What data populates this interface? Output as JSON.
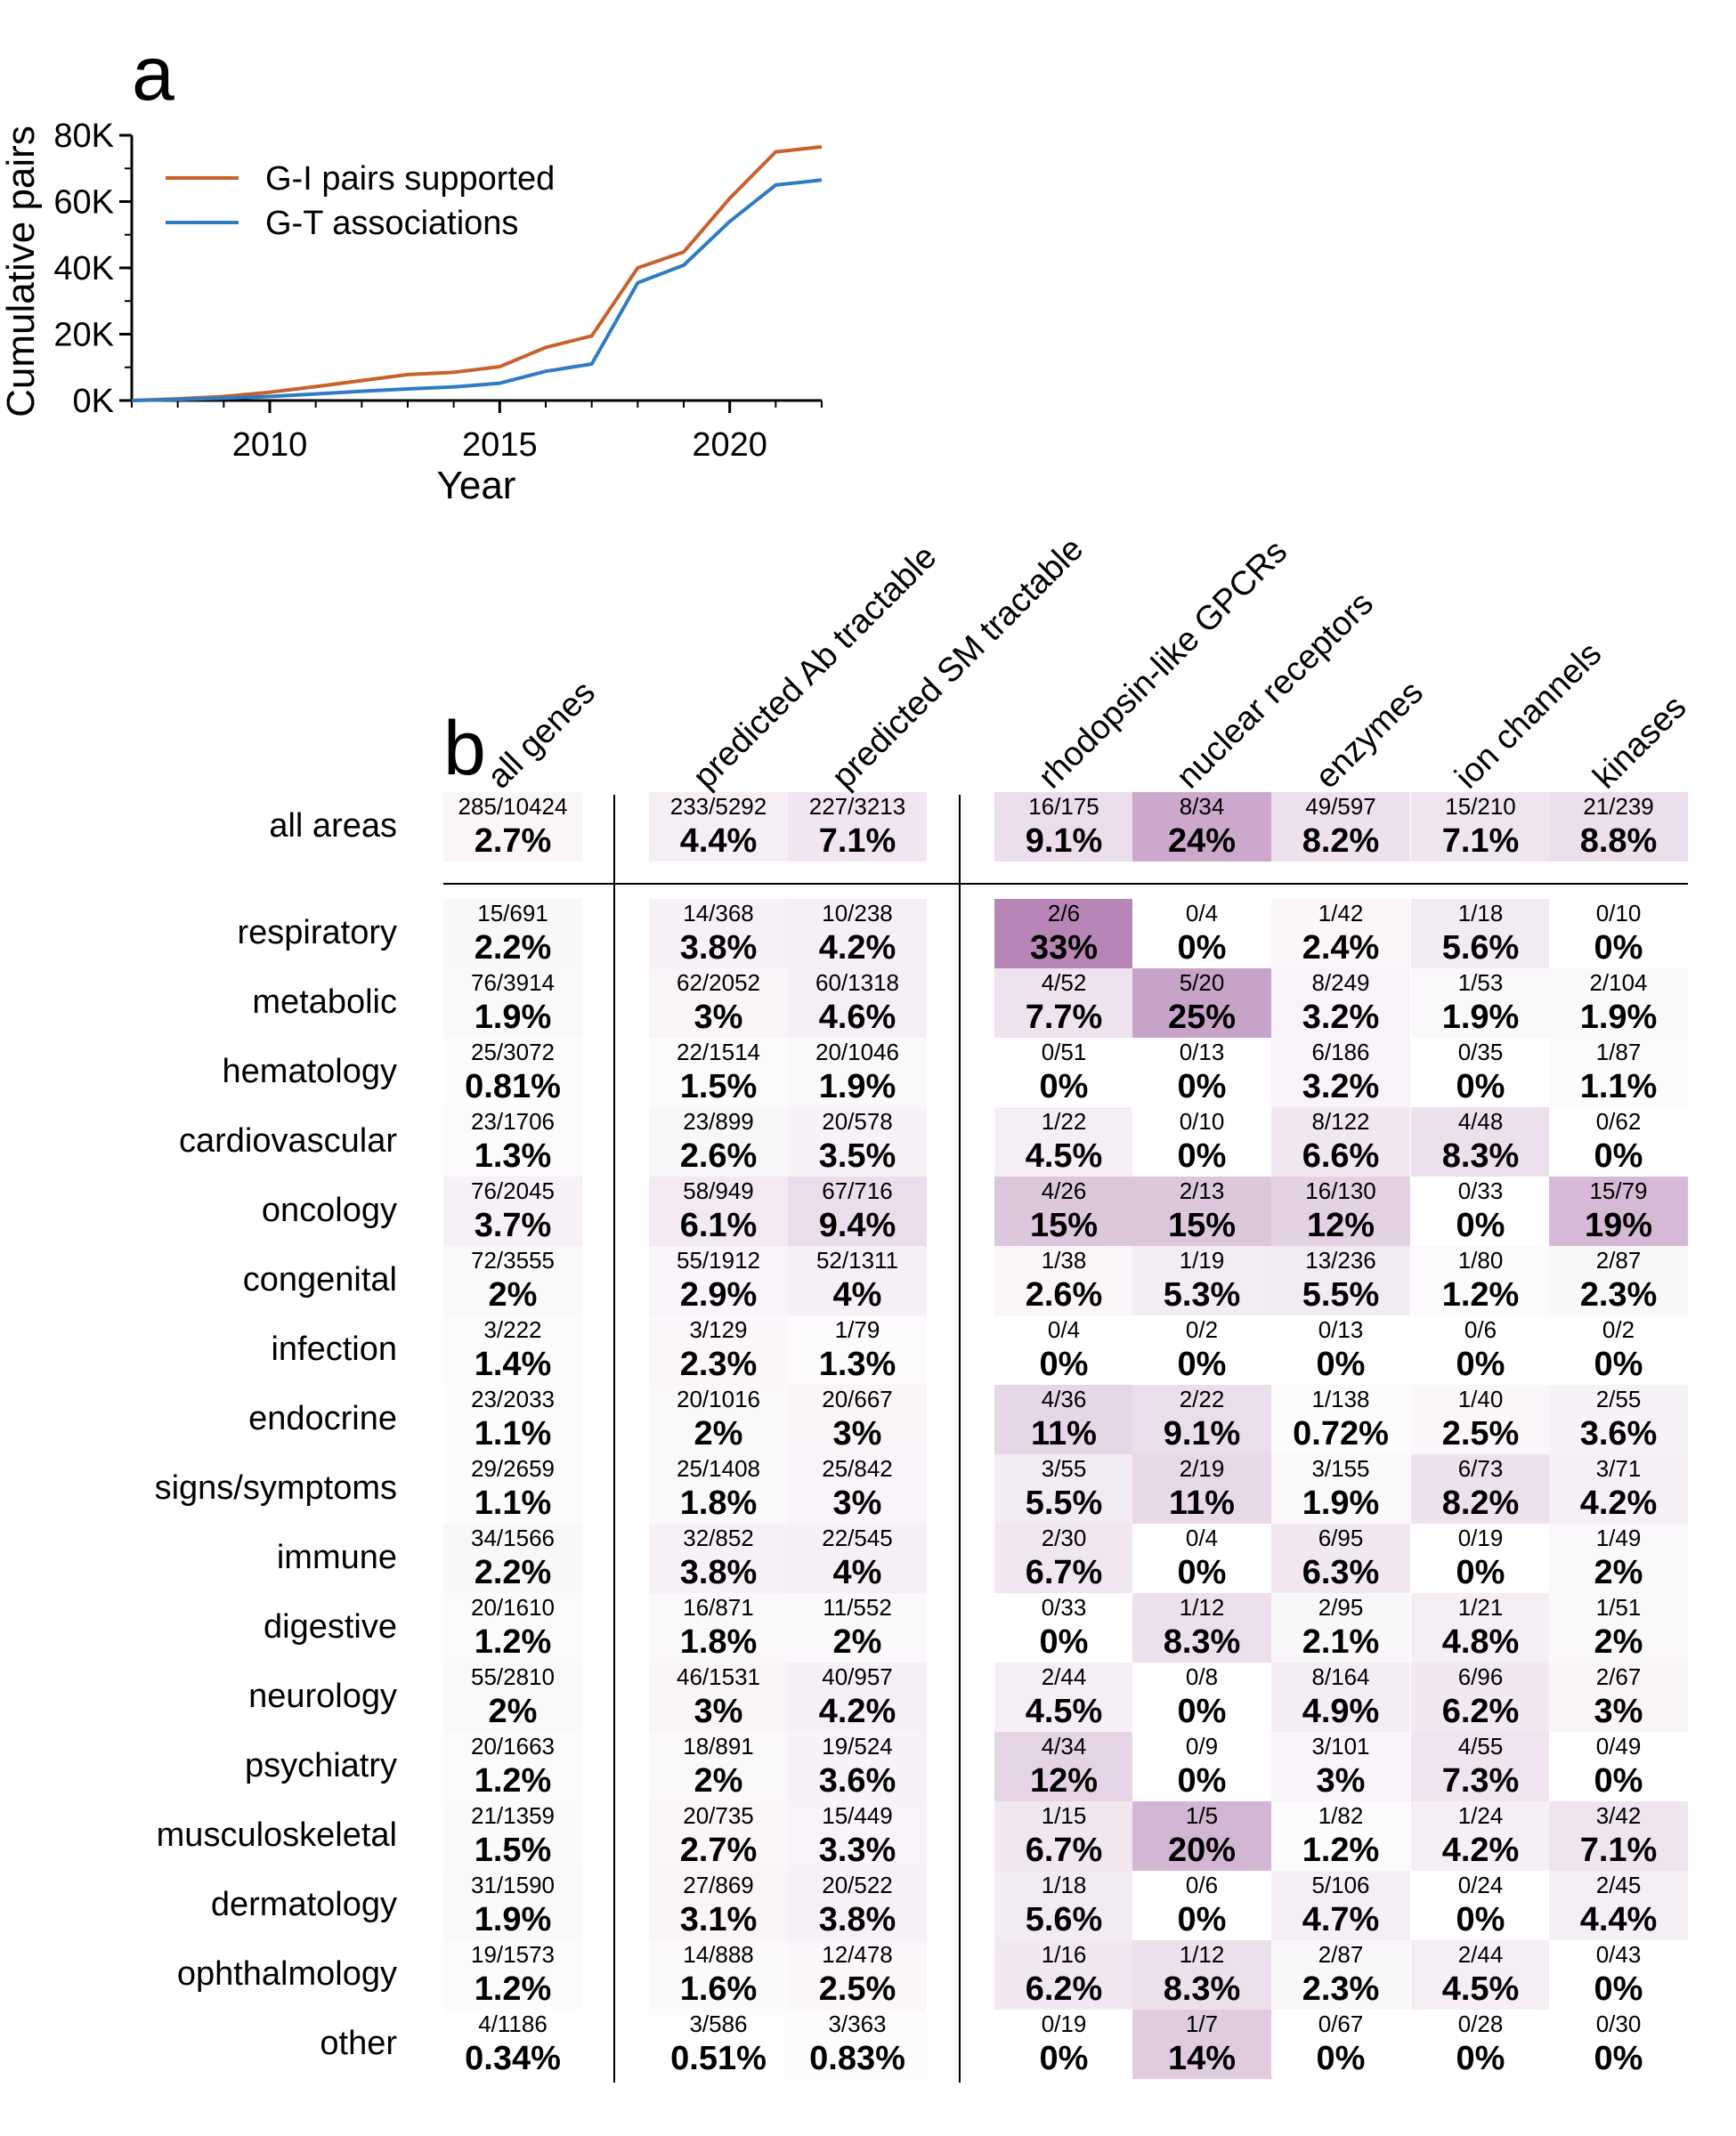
{
  "panel_a": {
    "letter": "a",
    "chart_data": {
      "type": "line",
      "xlabel": "Year",
      "ylabel": "Cumulative pairs",
      "xlim": [
        2007,
        2022
      ],
      "ylim": [
        0,
        80000
      ],
      "x_ticks": [
        2010,
        2015,
        2020
      ],
      "x_tick_labels": [
        "2010",
        "2015",
        "2020"
      ],
      "y_ticks": [
        0,
        20000,
        40000,
        60000,
        80000
      ],
      "y_tick_labels": [
        "0K",
        "20K",
        "40K",
        "60K",
        "80K"
      ],
      "legend_position": "top-left",
      "grid": false,
      "series": [
        {
          "name": "G-I pairs supported",
          "color": "#c8622d",
          "x": [
            2007,
            2008,
            2009,
            2010,
            2011,
            2012,
            2013,
            2014,
            2015,
            2016,
            2017,
            2018,
            2019,
            2020,
            2021,
            2022
          ],
          "y": [
            0,
            500,
            1200,
            2500,
            4200,
            6000,
            7800,
            8500,
            10200,
            16000,
            19500,
            40000,
            44800,
            61000,
            75000,
            76500
          ]
        },
        {
          "name": "G-T associations",
          "color": "#2f7bc4",
          "x": [
            2007,
            2008,
            2009,
            2010,
            2011,
            2012,
            2013,
            2014,
            2015,
            2016,
            2017,
            2018,
            2019,
            2020,
            2021,
            2022
          ],
          "y": [
            0,
            300,
            700,
            1200,
            2000,
            2800,
            3500,
            4100,
            5200,
            8800,
            11000,
            35500,
            40800,
            54000,
            65000,
            66500
          ]
        }
      ]
    }
  },
  "panel_b": {
    "letter": "b",
    "chart_data": {
      "type": "heatmap",
      "columns": [
        "all genes",
        "predicted Ab tractable",
        "predicted SM tractable",
        "rhodopsin-like GPCRs",
        "nuclear receptors",
        "enzymes",
        "ion channels",
        "kinases"
      ],
      "rows": [
        {
          "label": "all areas",
          "fractions": [
            "285/10424",
            "233/5292",
            "227/3213",
            "16/175",
            "8/34",
            "49/597",
            "15/210",
            "21/239"
          ],
          "percents": [
            "2.7%",
            "4.4%",
            "7.1%",
            "9.1%",
            "24%",
            "8.2%",
            "7.1%",
            "8.8%"
          ]
        },
        {
          "label": "respiratory",
          "fractions": [
            "15/691",
            "14/368",
            "10/238",
            "2/6",
            "0/4",
            "1/42",
            "1/18",
            "0/10"
          ],
          "percents": [
            "2.2%",
            "3.8%",
            "4.2%",
            "33%",
            "0%",
            "2.4%",
            "5.6%",
            "0%"
          ]
        },
        {
          "label": "metabolic",
          "fractions": [
            "76/3914",
            "62/2052",
            "60/1318",
            "4/52",
            "5/20",
            "8/249",
            "1/53",
            "2/104"
          ],
          "percents": [
            "1.9%",
            "3%",
            "4.6%",
            "7.7%",
            "25%",
            "3.2%",
            "1.9%",
            "1.9%"
          ]
        },
        {
          "label": "hematology",
          "fractions": [
            "25/3072",
            "22/1514",
            "20/1046",
            "0/51",
            "0/13",
            "6/186",
            "0/35",
            "1/87"
          ],
          "percents": [
            "0.81%",
            "1.5%",
            "1.9%",
            "0%",
            "0%",
            "3.2%",
            "0%",
            "1.1%"
          ]
        },
        {
          "label": "cardiovascular",
          "fractions": [
            "23/1706",
            "23/899",
            "20/578",
            "1/22",
            "0/10",
            "8/122",
            "4/48",
            "0/62"
          ],
          "percents": [
            "1.3%",
            "2.6%",
            "3.5%",
            "4.5%",
            "0%",
            "6.6%",
            "8.3%",
            "0%"
          ]
        },
        {
          "label": "oncology",
          "fractions": [
            "76/2045",
            "58/949",
            "67/716",
            "4/26",
            "2/13",
            "16/130",
            "0/33",
            "15/79"
          ],
          "percents": [
            "3.7%",
            "6.1%",
            "9.4%",
            "15%",
            "15%",
            "12%",
            "0%",
            "19%"
          ]
        },
        {
          "label": "congenital",
          "fractions": [
            "72/3555",
            "55/1912",
            "52/1311",
            "1/38",
            "1/19",
            "13/236",
            "1/80",
            "2/87"
          ],
          "percents": [
            "2%",
            "2.9%",
            "4%",
            "2.6%",
            "5.3%",
            "5.5%",
            "1.2%",
            "2.3%"
          ]
        },
        {
          "label": "infection",
          "fractions": [
            "3/222",
            "3/129",
            "1/79",
            "0/4",
            "0/2",
            "0/13",
            "0/6",
            "0/2"
          ],
          "percents": [
            "1.4%",
            "2.3%",
            "1.3%",
            "0%",
            "0%",
            "0%",
            "0%",
            "0%"
          ]
        },
        {
          "label": "endocrine",
          "fractions": [
            "23/2033",
            "20/1016",
            "20/667",
            "4/36",
            "2/22",
            "1/138",
            "1/40",
            "2/55"
          ],
          "percents": [
            "1.1%",
            "2%",
            "3%",
            "11%",
            "9.1%",
            "0.72%",
            "2.5%",
            "3.6%"
          ]
        },
        {
          "label": "signs/symptoms",
          "fractions": [
            "29/2659",
            "25/1408",
            "25/842",
            "3/55",
            "2/19",
            "3/155",
            "6/73",
            "3/71"
          ],
          "percents": [
            "1.1%",
            "1.8%",
            "3%",
            "5.5%",
            "11%",
            "1.9%",
            "8.2%",
            "4.2%"
          ]
        },
        {
          "label": "immune",
          "fractions": [
            "34/1566",
            "32/852",
            "22/545",
            "2/30",
            "0/4",
            "6/95",
            "0/19",
            "1/49"
          ],
          "percents": [
            "2.2%",
            "3.8%",
            "4%",
            "6.7%",
            "0%",
            "6.3%",
            "0%",
            "2%"
          ]
        },
        {
          "label": "digestive",
          "fractions": [
            "20/1610",
            "16/871",
            "11/552",
            "0/33",
            "1/12",
            "2/95",
            "1/21",
            "1/51"
          ],
          "percents": [
            "1.2%",
            "1.8%",
            "2%",
            "0%",
            "8.3%",
            "2.1%",
            "4.8%",
            "2%"
          ]
        },
        {
          "label": "neurology",
          "fractions": [
            "55/2810",
            "46/1531",
            "40/957",
            "2/44",
            "0/8",
            "8/164",
            "6/96",
            "2/67"
          ],
          "percents": [
            "2%",
            "3%",
            "4.2%",
            "4.5%",
            "0%",
            "4.9%",
            "6.2%",
            "3%"
          ]
        },
        {
          "label": "psychiatry",
          "fractions": [
            "20/1663",
            "18/891",
            "19/524",
            "4/34",
            "0/9",
            "3/101",
            "4/55",
            "0/49"
          ],
          "percents": [
            "1.2%",
            "2%",
            "3.6%",
            "12%",
            "0%",
            "3%",
            "7.3%",
            "0%"
          ]
        },
        {
          "label": "musculoskeletal",
          "fractions": [
            "21/1359",
            "20/735",
            "15/449",
            "1/15",
            "1/5",
            "1/82",
            "1/24",
            "3/42"
          ],
          "percents": [
            "1.5%",
            "2.7%",
            "3.3%",
            "6.7%",
            "20%",
            "1.2%",
            "4.2%",
            "7.1%"
          ]
        },
        {
          "label": "dermatology",
          "fractions": [
            "31/1590",
            "27/869",
            "20/522",
            "1/18",
            "0/6",
            "5/106",
            "0/24",
            "2/45"
          ],
          "percents": [
            "1.9%",
            "3.1%",
            "3.8%",
            "5.6%",
            "0%",
            "4.7%",
            "0%",
            "4.4%"
          ]
        },
        {
          "label": "ophthalmology",
          "fractions": [
            "19/1573",
            "14/888",
            "12/478",
            "1/16",
            "1/12",
            "2/87",
            "2/44",
            "0/43"
          ],
          "percents": [
            "1.2%",
            "1.6%",
            "2.5%",
            "6.2%",
            "8.3%",
            "2.3%",
            "4.5%",
            "0%"
          ]
        },
        {
          "label": "other",
          "fractions": [
            "4/1186",
            "3/586",
            "3/363",
            "0/19",
            "1/7",
            "0/67",
            "0/28",
            "0/30"
          ],
          "percents": [
            "0.34%",
            "0.51%",
            "0.83%",
            "0%",
            "14%",
            "0%",
            "0%",
            "0%"
          ]
        }
      ],
      "colormap": {
        "low": "#ffffff",
        "high": "#b786b7",
        "max_percent": 33
      }
    }
  }
}
